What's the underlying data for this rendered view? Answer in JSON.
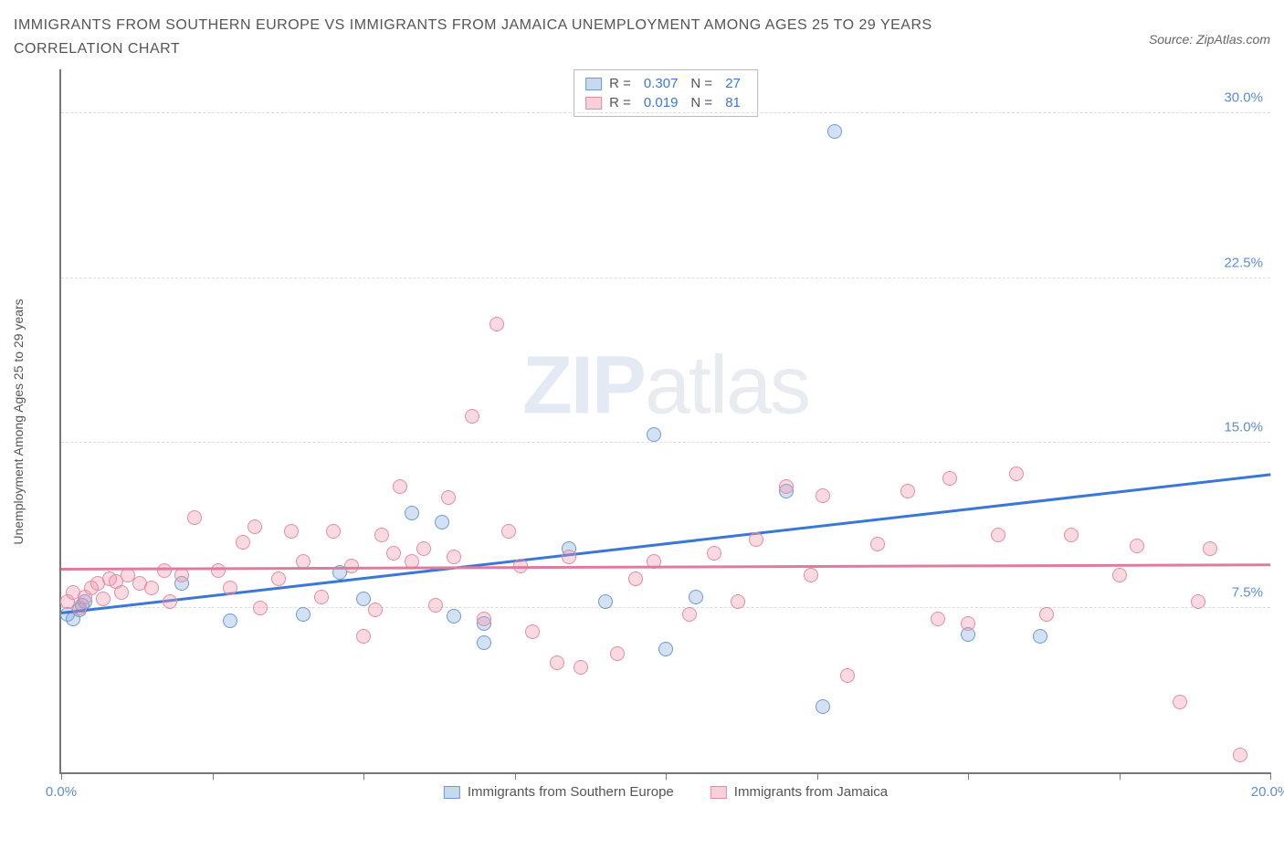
{
  "title_line1": "IMMIGRANTS FROM SOUTHERN EUROPE VS IMMIGRANTS FROM JAMAICA UNEMPLOYMENT AMONG AGES 25 TO 29 YEARS",
  "title_line2": "CORRELATION CHART",
  "source_label": "Source: ZipAtlas.com",
  "ylabel": "Unemployment Among Ages 25 to 29 years",
  "watermark_bold": "ZIP",
  "watermark_thin": "atlas",
  "chart": {
    "type": "scatter",
    "background_color": "#ffffff",
    "grid_color": "#dddddd",
    "axis_color": "#777777",
    "xlim": [
      0,
      20
    ],
    "ylim": [
      0,
      32
    ],
    "xtick_positions": [
      0,
      2.5,
      5,
      7.5,
      10,
      12.5,
      15,
      17.5,
      20
    ],
    "xtick_labels": {
      "0": "0.0%",
      "20": "20.0%"
    },
    "ytick_positions": [
      7.5,
      15,
      22.5,
      30
    ],
    "ytick_labels": {
      "7.5": "7.5%",
      "15": "15.0%",
      "22.5": "22.5%",
      "30": "30.0%"
    },
    "label_fontsize": 15,
    "label_color": "#5b8dd6",
    "marker_size": 16,
    "series": [
      {
        "name": "Immigrants from Southern Europe",
        "color_fill": "rgba(130,170,220,0.35)",
        "color_border": "#6a9bd6",
        "trend_color": "#3b78d6",
        "R": "0.307",
        "N": "27",
        "trend": {
          "x1": 0,
          "y1": 7.2,
          "x2": 20,
          "y2": 13.5
        },
        "points": [
          [
            0.1,
            7.2
          ],
          [
            0.2,
            7.0
          ],
          [
            0.3,
            7.4
          ],
          [
            0.35,
            7.6
          ],
          [
            0.4,
            7.8
          ],
          [
            2.0,
            8.6
          ],
          [
            2.8,
            6.9
          ],
          [
            4.0,
            7.2
          ],
          [
            4.6,
            9.1
          ],
          [
            5.0,
            7.9
          ],
          [
            5.8,
            11.8
          ],
          [
            6.3,
            11.4
          ],
          [
            6.5,
            7.1
          ],
          [
            7.0,
            6.8
          ],
          [
            7.0,
            5.9
          ],
          [
            8.4,
            10.2
          ],
          [
            9.0,
            7.8
          ],
          [
            9.8,
            15.4
          ],
          [
            10.0,
            5.6
          ],
          [
            10.5,
            8.0
          ],
          [
            12.0,
            12.8
          ],
          [
            12.6,
            3.0
          ],
          [
            12.8,
            29.2
          ],
          [
            15.0,
            6.3
          ],
          [
            16.2,
            6.2
          ]
        ]
      },
      {
        "name": "Immigrants from Jamaica",
        "color_fill": "rgba(240,150,170,0.35)",
        "color_border": "#e68aa5",
        "trend_color": "#e07ba0",
        "R": "0.019",
        "N": "81",
        "trend": {
          "x1": 0,
          "y1": 9.2,
          "x2": 20,
          "y2": 9.4
        },
        "points": [
          [
            0.1,
            7.8
          ],
          [
            0.2,
            8.2
          ],
          [
            0.3,
            7.5
          ],
          [
            0.4,
            8.0
          ],
          [
            0.5,
            8.4
          ],
          [
            0.6,
            8.6
          ],
          [
            0.7,
            7.9
          ],
          [
            0.8,
            8.8
          ],
          [
            0.9,
            8.7
          ],
          [
            1.0,
            8.2
          ],
          [
            1.1,
            9.0
          ],
          [
            1.3,
            8.6
          ],
          [
            1.5,
            8.4
          ],
          [
            1.7,
            9.2
          ],
          [
            1.8,
            7.8
          ],
          [
            2.0,
            9.0
          ],
          [
            2.2,
            11.6
          ],
          [
            2.6,
            9.2
          ],
          [
            2.8,
            8.4
          ],
          [
            3.0,
            10.5
          ],
          [
            3.2,
            11.2
          ],
          [
            3.3,
            7.5
          ],
          [
            3.6,
            8.8
          ],
          [
            3.8,
            11.0
          ],
          [
            4.0,
            9.6
          ],
          [
            4.3,
            8.0
          ],
          [
            4.5,
            11.0
          ],
          [
            4.8,
            9.4
          ],
          [
            5.0,
            6.2
          ],
          [
            5.2,
            7.4
          ],
          [
            5.3,
            10.8
          ],
          [
            5.5,
            10.0
          ],
          [
            5.6,
            13.0
          ],
          [
            5.8,
            9.6
          ],
          [
            6.0,
            10.2
          ],
          [
            6.2,
            7.6
          ],
          [
            6.4,
            12.5
          ],
          [
            6.5,
            9.8
          ],
          [
            6.8,
            16.2
          ],
          [
            7.0,
            7.0
          ],
          [
            7.2,
            20.4
          ],
          [
            7.4,
            11.0
          ],
          [
            7.6,
            9.4
          ],
          [
            7.8,
            6.4
          ],
          [
            8.2,
            5.0
          ],
          [
            8.4,
            9.8
          ],
          [
            8.6,
            4.8
          ],
          [
            9.2,
            5.4
          ],
          [
            9.5,
            8.8
          ],
          [
            9.8,
            9.6
          ],
          [
            10.4,
            7.2
          ],
          [
            10.8,
            10.0
          ],
          [
            11.2,
            7.8
          ],
          [
            11.5,
            10.6
          ],
          [
            12.0,
            13.0
          ],
          [
            12.4,
            9.0
          ],
          [
            12.6,
            12.6
          ],
          [
            13.0,
            4.4
          ],
          [
            13.5,
            10.4
          ],
          [
            14.0,
            12.8
          ],
          [
            14.5,
            7.0
          ],
          [
            14.7,
            13.4
          ],
          [
            15.0,
            6.8
          ],
          [
            15.5,
            10.8
          ],
          [
            15.8,
            13.6
          ],
          [
            16.3,
            7.2
          ],
          [
            16.7,
            10.8
          ],
          [
            17.5,
            9.0
          ],
          [
            17.8,
            10.3
          ],
          [
            18.5,
            3.2
          ],
          [
            18.8,
            7.8
          ],
          [
            19.0,
            10.2
          ],
          [
            19.5,
            0.8
          ]
        ]
      }
    ]
  },
  "legend_box": {
    "R_label": "R =",
    "N_label": "N ="
  },
  "bottom_legend": {
    "series1": "Immigrants from Southern Europe",
    "series2": "Immigrants from Jamaica"
  }
}
